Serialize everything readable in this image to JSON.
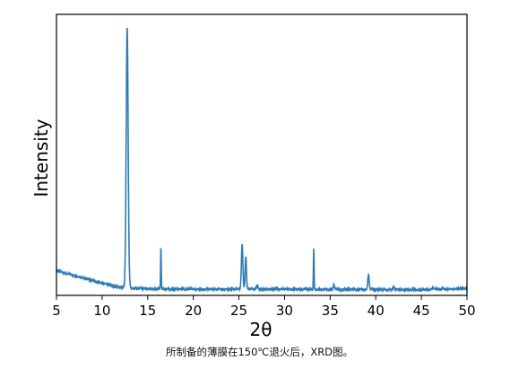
{
  "chart_data": {
    "type": "line",
    "xlabel": "2θ",
    "ylabel": "Intensity",
    "xlim": [
      5,
      50
    ],
    "ylim": [
      0,
      100
    ],
    "x_ticks": [
      5,
      10,
      15,
      20,
      25,
      30,
      35,
      40,
      45,
      50
    ],
    "y_ticks_shown": false,
    "grid": false,
    "line_color": "#2d7bb6",
    "series": [
      {
        "baseline": [
          [
            5,
            9.3
          ],
          [
            6,
            8.2
          ],
          [
            7,
            7.3
          ],
          [
            8,
            6.4
          ],
          [
            9,
            5.5
          ],
          [
            10,
            4.6
          ],
          [
            11,
            3.6
          ],
          [
            12,
            2.9
          ],
          [
            14,
            2.6
          ],
          [
            16,
            2.4
          ],
          [
            20,
            2.3
          ],
          [
            25,
            2.3
          ],
          [
            30,
            2.3
          ],
          [
            35,
            2.2
          ],
          [
            40,
            2.2
          ],
          [
            45,
            2.1
          ],
          [
            50,
            2.6
          ]
        ],
        "peaks": [
          {
            "x": 12.75,
            "y": 100,
            "width": 0.12
          },
          {
            "x": 16.45,
            "y": 17.5,
            "width": 0.04
          },
          {
            "x": 25.35,
            "y": 19.0,
            "width": 0.09
          },
          {
            "x": 25.75,
            "y": 14.3,
            "width": 0.08
          },
          {
            "x": 27.0,
            "y": 3.5,
            "width": 0.1
          },
          {
            "x": 33.2,
            "y": 17.3,
            "width": 0.04
          },
          {
            "x": 35.4,
            "y": 3.9,
            "width": 0.08
          },
          {
            "x": 39.2,
            "y": 7.5,
            "width": 0.09
          },
          {
            "x": 42.0,
            "y": 3.0,
            "width": 0.1
          },
          {
            "x": 46.3,
            "y": 2.8,
            "width": 0.1
          }
        ]
      }
    ]
  },
  "caption": "所制备的薄膜在150℃退火后，XRD图。"
}
